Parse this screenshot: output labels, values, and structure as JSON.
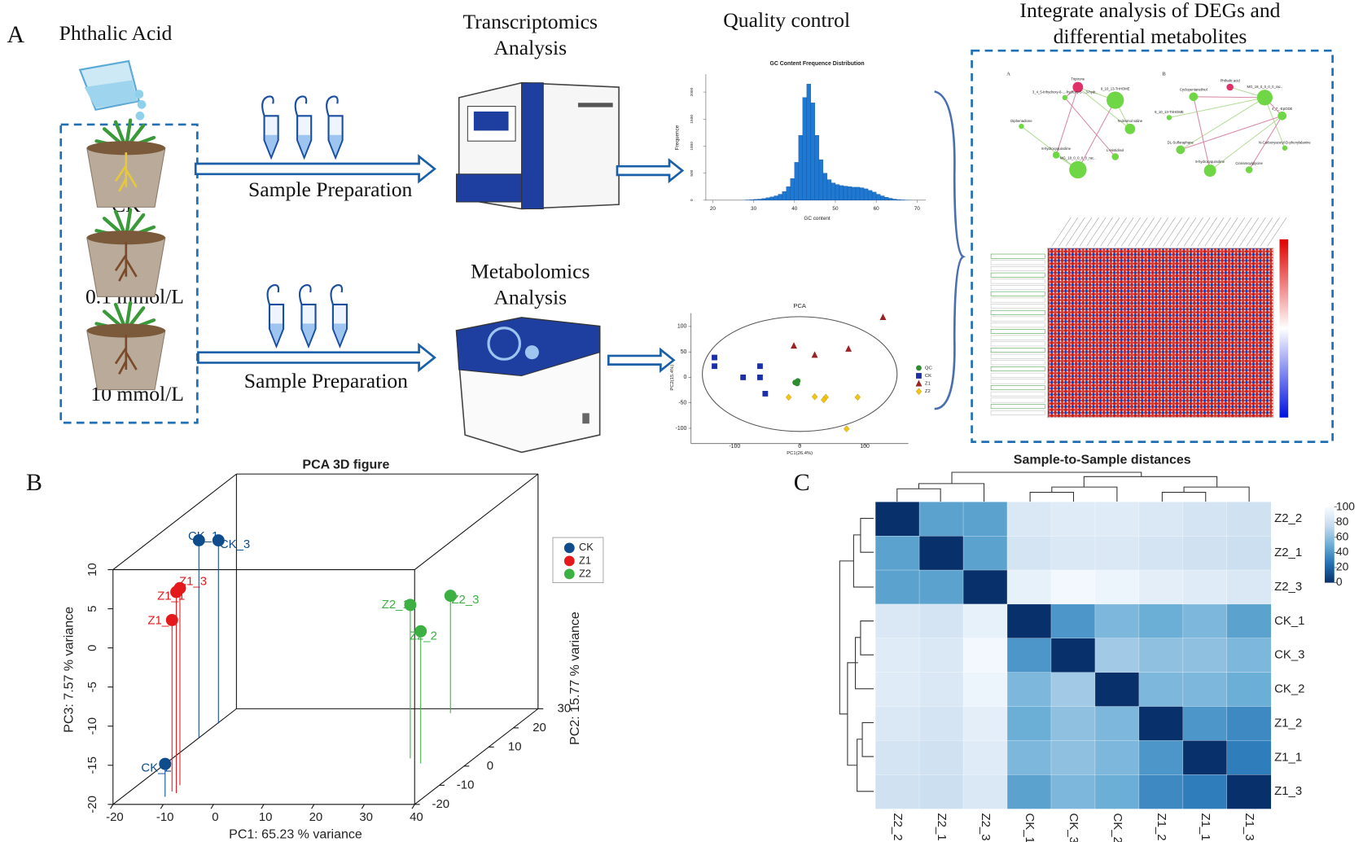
{
  "panel_a": {
    "label": "A",
    "treatment": "Phthalic Acid",
    "groups": [
      "CK",
      "0.1 mmol/L",
      "10 mmol/L"
    ],
    "preparation": [
      "Sample Preparation",
      "Sample Preparation"
    ],
    "transcriptomics": [
      "Transcriptomics",
      "Analysis"
    ],
    "metabolomics": [
      "Metabolomics",
      "Analysis"
    ],
    "quality_control": "Quality control",
    "integrate": [
      "Integrate analysis of DEGs and",
      "differential metabolites"
    ],
    "network": {
      "panels": [
        "A",
        "B"
      ],
      "nodes_a": [
        "Triptrone",
        "9_10_13-TriHOME",
        "3_4_5-trihydroxy-6-...-hydroxy-5-...3-hydr..",
        "Diphenadione",
        "N-desmol valine",
        "8-hydroxyquinoline",
        "L-Histidinol",
        "MG_18_0_0_0_0_rac.."
      ],
      "nodes_b": [
        "Phthalic acid",
        "Cyclopentanethiol",
        "MG_18_0_0_0_0_rac..",
        "9_10_13-TriHOME",
        "4_7_-EpODE",
        "DL-Sulforaphane",
        "N-Carboxyacetyl-D-phenylalanine",
        "8-hydroxyquinoline",
        "Cinnamoylglycine"
      ]
    }
  },
  "panel_b": "B",
  "panel_c": "C",
  "chart_data": [
    {
      "type": "histogram",
      "title": "GC Content Frequence Distribution",
      "x_label": "GC content",
      "y_label": "Frequence",
      "color": "#1f78d1",
      "bins": [
        28,
        29,
        30,
        31,
        32,
        33,
        34,
        35,
        36,
        37,
        38,
        39,
        40,
        41,
        42,
        43,
        44,
        45,
        46,
        47,
        48,
        49,
        50,
        51,
        52,
        53,
        54,
        55,
        56,
        57,
        58,
        59,
        60,
        61,
        62,
        63,
        64,
        65,
        66,
        67,
        68
      ],
      "values": [
        5,
        10,
        15,
        20,
        30,
        45,
        60,
        80,
        110,
        160,
        250,
        400,
        700,
        1200,
        1900,
        2150,
        1800,
        1200,
        750,
        500,
        380,
        320,
        290,
        270,
        260,
        250,
        240,
        240,
        230,
        210,
        180,
        150,
        110,
        80,
        55,
        35,
        20,
        12,
        6,
        3
      ],
      "xlim": [
        20,
        70
      ],
      "xticks": [
        20,
        30,
        40,
        50,
        60,
        70
      ],
      "ylim": [
        0,
        2300
      ],
      "yticks": [
        0,
        500,
        1000,
        1500,
        2000
      ]
    },
    {
      "type": "scatter",
      "title": "PCA",
      "x_label": "PC1(26.4%)",
      "y_label": "PC2(15.4%)",
      "xlim": [
        -167,
        167
      ],
      "ylim": [
        -130,
        126
      ],
      "xticks": [
        -100,
        0,
        100
      ],
      "yticks": [
        100,
        50,
        0,
        -50,
        -100
      ],
      "series": [
        {
          "name": "QC",
          "color": "#2e8b2e",
          "marker": "circle",
          "x": [
            -7,
            -3,
            -4
          ],
          "y": [
            -10,
            -7,
            -12
          ]
        },
        {
          "name": "CK",
          "color": "#1a2fa8",
          "marker": "square",
          "x": [
            -131,
            -131,
            -87,
            -61,
            -61,
            -53
          ],
          "y": [
            39,
            22,
            0,
            22,
            0,
            -32
          ]
        },
        {
          "name": "Z1",
          "color": "#9b2222",
          "marker": "triangle",
          "x": [
            -9,
            23,
            75,
            128
          ],
          "y": [
            62,
            44,
            56,
            118
          ]
        },
        {
          "name": "Z2",
          "color": "#f0c419",
          "marker": "diamond",
          "x": [
            -17,
            23,
            40,
            37,
            89,
            72
          ],
          "y": [
            -39,
            -38,
            -39,
            -44,
            -39,
            -101
          ]
        }
      ]
    },
    {
      "type": "scatter3d",
      "title": "PCA 3D figure",
      "x_label": "PC1: 65.23 % variance",
      "y_label": "PC2: 15.77 % variance",
      "z_label": "PC3: 7.57 % variance",
      "xlim": [
        -20,
        40
      ],
      "ylim": [
        -20,
        30
      ],
      "zlim": [
        -20,
        10
      ],
      "xticks": [
        -20,
        -10,
        0,
        10,
        20,
        30,
        40
      ],
      "yticks": [
        -20,
        -10,
        0,
        10,
        20,
        30
      ],
      "zticks": [
        -20,
        -15,
        -10,
        -5,
        0,
        5,
        10
      ],
      "series": [
        {
          "name": "CK",
          "color": "#0e4c8c",
          "labels": [
            "CK_1",
            "CK_3",
            "CK_2"
          ],
          "x": [
            -20.1,
            -19.8,
            -11.6
          ],
          "y": [
            15,
            22.3,
            -16
          ],
          "z": [
            5.2,
            3.4,
            -15.8
          ]
        },
        {
          "name": "Z1",
          "color": "#e3191c",
          "labels": [
            "Z1_3",
            "Z1_1",
            "Z1_2"
          ],
          "x": [
            -11.6,
            -10.3,
            -11.6
          ],
          "y": [
            -10,
            -14.1,
            -13.2
          ],
          "z": [
            5.2,
            5.7,
            1.9
          ]
        },
        {
          "name": "Z2",
          "color": "#3cb043",
          "labels": [
            "Z2_3",
            "Z2_1",
            "Z2_2"
          ],
          "x": [
            23.7,
            27.3,
            30.7
          ],
          "y": [
            27.7,
            4.1,
            1.4
          ],
          "z": [
            -5,
            -0.4,
            -3.1
          ]
        }
      ]
    },
    {
      "type": "heatmap",
      "title": "Sample-to-Sample distances",
      "rows": [
        "Z2_2",
        "Z2_1",
        "Z2_3",
        "CK_1",
        "CK_3",
        "CK_2",
        "Z1_2",
        "Z1_1",
        "Z1_3"
      ],
      "columns": [
        "Z2_2",
        "Z2_1",
        "Z2_3",
        "CK_1",
        "CK_3",
        "CK_2",
        "Z1_2",
        "Z1_1",
        "Z1_3"
      ],
      "values": [
        [
          0,
          45,
          45,
          85,
          88,
          88,
          85,
          82,
          80
        ],
        [
          45,
          0,
          45,
          82,
          85,
          85,
          82,
          80,
          78
        ],
        [
          45,
          45,
          0,
          92,
          98,
          95,
          90,
          88,
          85
        ],
        [
          85,
          82,
          92,
          0,
          40,
          55,
          50,
          55,
          45
        ],
        [
          88,
          85,
          98,
          40,
          0,
          65,
          60,
          60,
          55
        ],
        [
          88,
          85,
          95,
          55,
          65,
          0,
          55,
          55,
          50
        ],
        [
          85,
          82,
          90,
          50,
          60,
          55,
          0,
          40,
          35
        ],
        [
          82,
          80,
          88,
          55,
          60,
          55,
          40,
          0,
          30
        ],
        [
          80,
          78,
          85,
          45,
          55,
          50,
          35,
          30,
          0
        ]
      ],
      "zlim": [
        0,
        100
      ],
      "colorbar_ticks": [
        0,
        20,
        40,
        60,
        80,
        100
      ],
      "colormap": [
        "#08306b",
        "#2171b5",
        "#6baed6",
        "#c6dbef",
        "#f7fbff"
      ]
    }
  ]
}
